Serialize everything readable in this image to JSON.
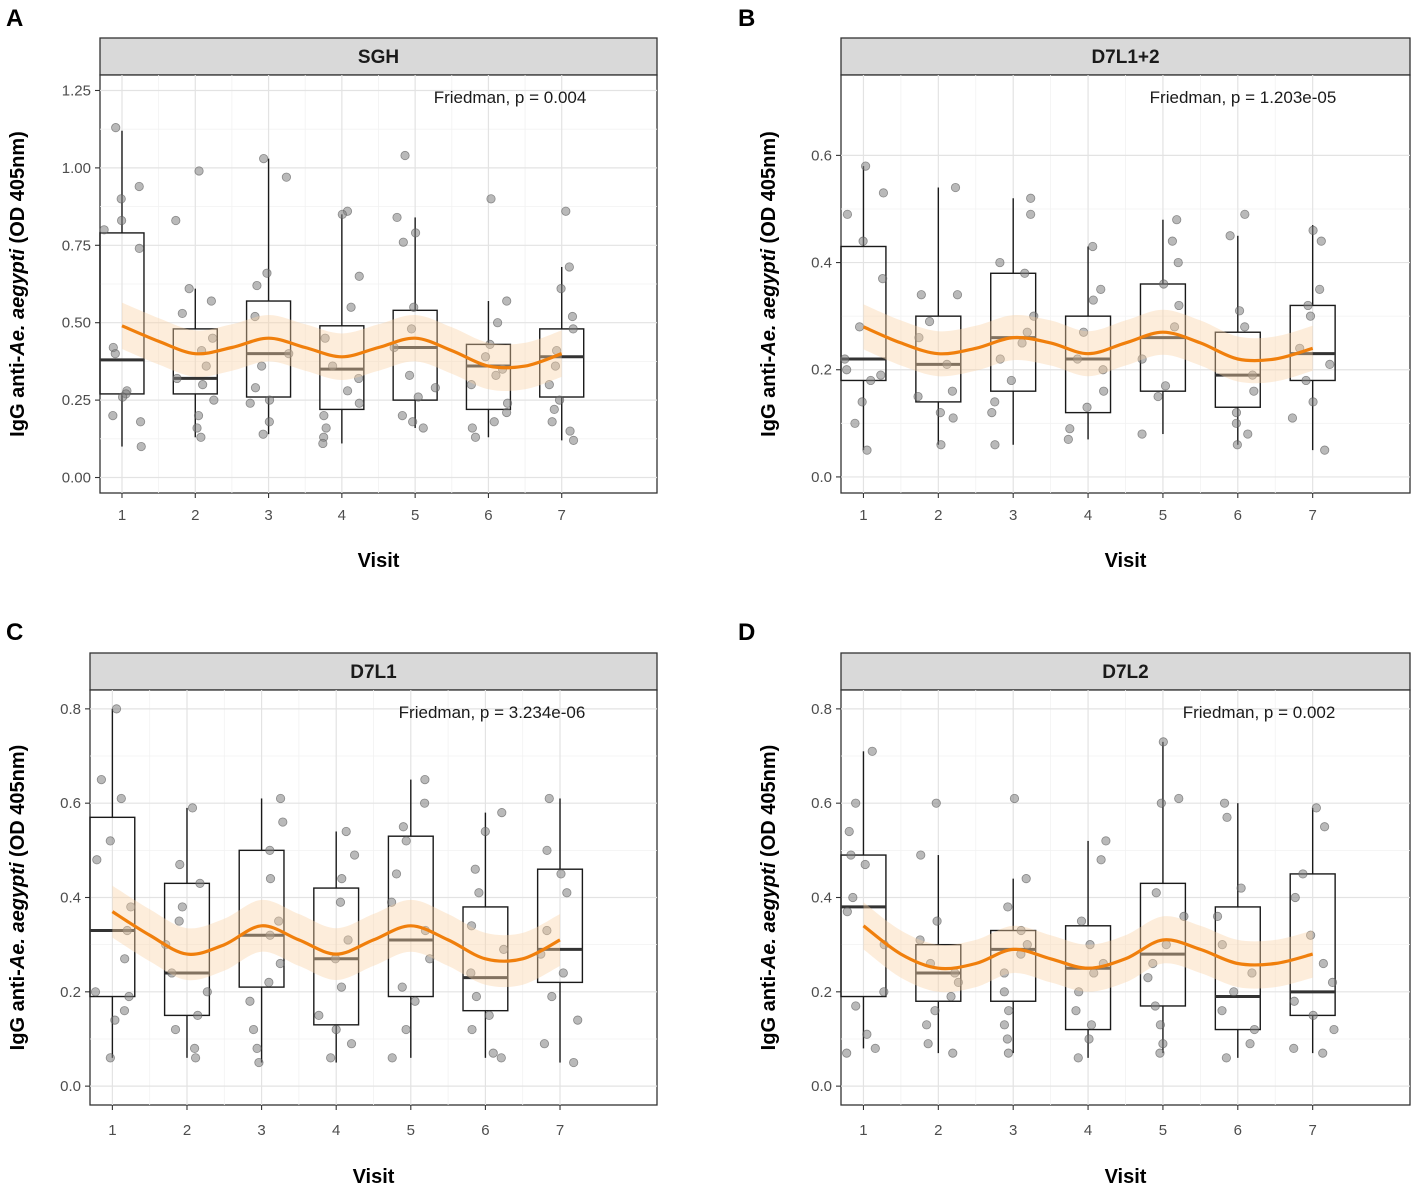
{
  "figure": {
    "xlabel": "Visit",
    "ylabel_prefix": "IgG anti-",
    "ylabel_italic": "Ae. aegypti",
    "ylabel_suffix": " (OD 405nm)"
  },
  "colors": {
    "trend": "#f07f0c",
    "ribbon": "#fbd3a5",
    "points": "#7f7f7f",
    "strip": "#d9d9d9"
  },
  "chart_data": [
    {
      "panel": "A",
      "type": "box",
      "title": "SGH",
      "annotation": "Friedman, p = 0.004",
      "xlabel": "Visit",
      "ylabel": "IgG anti-Ae. aegypti (OD 405nm)",
      "categories": [
        "1",
        "2",
        "3",
        "4",
        "5",
        "6",
        "7"
      ],
      "ylim": [
        -0.05,
        1.3
      ],
      "yticks": [
        0.0,
        0.25,
        0.5,
        0.75,
        1.0,
        1.25
      ],
      "yticklabels": [
        "0.00",
        "0.25",
        "0.50",
        "0.75",
        "1.00",
        "1.25"
      ],
      "boxes": [
        {
          "visit": 1,
          "low": 0.1,
          "q1": 0.27,
          "median": 0.38,
          "q3": 0.79,
          "high": 1.12
        },
        {
          "visit": 2,
          "low": 0.13,
          "q1": 0.27,
          "median": 0.32,
          "q3": 0.48,
          "high": 0.61
        },
        {
          "visit": 3,
          "low": 0.14,
          "q1": 0.26,
          "median": 0.4,
          "q3": 0.57,
          "high": 1.03
        },
        {
          "visit": 4,
          "low": 0.11,
          "q1": 0.22,
          "median": 0.35,
          "q3": 0.49,
          "high": 0.85
        },
        {
          "visit": 5,
          "low": 0.16,
          "q1": 0.25,
          "median": 0.42,
          "q3": 0.54,
          "high": 0.84
        },
        {
          "visit": 6,
          "low": 0.13,
          "q1": 0.22,
          "median": 0.36,
          "q3": 0.43,
          "high": 0.57
        },
        {
          "visit": 7,
          "low": 0.12,
          "q1": 0.26,
          "median": 0.39,
          "q3": 0.48,
          "high": 0.68
        }
      ],
      "points": [
        {
          "visit": 1,
          "values": [
            0.94,
            0.9,
            1.13,
            0.83,
            0.8,
            0.74,
            0.42,
            0.4,
            0.28,
            0.27,
            0.26,
            0.2,
            0.18,
            0.1
          ]
        },
        {
          "visit": 2,
          "values": [
            0.99,
            0.83,
            0.61,
            0.57,
            0.53,
            0.45,
            0.41,
            0.36,
            0.32,
            0.3,
            0.25,
            0.2,
            0.16,
            0.13
          ]
        },
        {
          "visit": 3,
          "values": [
            1.03,
            0.97,
            0.66,
            0.62,
            0.52,
            0.4,
            0.36,
            0.29,
            0.25,
            0.24,
            0.18,
            0.14
          ]
        },
        {
          "visit": 4,
          "values": [
            0.86,
            0.85,
            0.65,
            0.55,
            0.45,
            0.36,
            0.32,
            0.28,
            0.24,
            0.2,
            0.16,
            0.13,
            0.11
          ]
        },
        {
          "visit": 5,
          "values": [
            1.04,
            0.84,
            0.79,
            0.76,
            0.55,
            0.48,
            0.42,
            0.33,
            0.29,
            0.26,
            0.2,
            0.18,
            0.16
          ]
        },
        {
          "visit": 6,
          "values": [
            0.9,
            0.57,
            0.5,
            0.43,
            0.39,
            0.35,
            0.33,
            0.3,
            0.24,
            0.21,
            0.18,
            0.16,
            0.13
          ]
        },
        {
          "visit": 7,
          "values": [
            0.86,
            0.68,
            0.61,
            0.52,
            0.48,
            0.41,
            0.36,
            0.3,
            0.25,
            0.22,
            0.18,
            0.15,
            0.12
          ]
        }
      ],
      "trend": [
        {
          "x": 1.0,
          "y": 0.49
        },
        {
          "x": 1.5,
          "y": 0.44
        },
        {
          "x": 2.0,
          "y": 0.4
        },
        {
          "x": 2.5,
          "y": 0.42
        },
        {
          "x": 3.0,
          "y": 0.45
        },
        {
          "x": 3.5,
          "y": 0.42
        },
        {
          "x": 4.0,
          "y": 0.39
        },
        {
          "x": 4.5,
          "y": 0.42
        },
        {
          "x": 5.0,
          "y": 0.45
        },
        {
          "x": 5.5,
          "y": 0.41
        },
        {
          "x": 6.0,
          "y": 0.36
        },
        {
          "x": 6.5,
          "y": 0.36
        },
        {
          "x": 7.0,
          "y": 0.4
        }
      ],
      "ribbon_halfwidth": 0.075
    },
    {
      "panel": "B",
      "type": "box",
      "title": "D7L1+2",
      "annotation": "Friedman, p = 1.203e-05",
      "xlabel": "Visit",
      "ylabel": "IgG anti-Ae. aegypti (OD 405nm)",
      "categories": [
        "1",
        "2",
        "3",
        "4",
        "5",
        "6",
        "7"
      ],
      "ylim": [
        -0.03,
        0.75
      ],
      "yticks": [
        0.0,
        0.2,
        0.4,
        0.6
      ],
      "yticklabels": [
        "0.0",
        "0.2",
        "0.4",
        "0.6"
      ],
      "boxes": [
        {
          "visit": 1,
          "low": 0.05,
          "q1": 0.18,
          "median": 0.22,
          "q3": 0.43,
          "high": 0.58
        },
        {
          "visit": 2,
          "low": 0.06,
          "q1": 0.14,
          "median": 0.21,
          "q3": 0.3,
          "high": 0.54
        },
        {
          "visit": 3,
          "low": 0.06,
          "q1": 0.16,
          "median": 0.26,
          "q3": 0.38,
          "high": 0.52
        },
        {
          "visit": 4,
          "low": 0.07,
          "q1": 0.12,
          "median": 0.22,
          "q3": 0.3,
          "high": 0.43
        },
        {
          "visit": 5,
          "low": 0.08,
          "q1": 0.16,
          "median": 0.26,
          "q3": 0.36,
          "high": 0.48
        },
        {
          "visit": 6,
          "low": 0.06,
          "q1": 0.13,
          "median": 0.19,
          "q3": 0.27,
          "high": 0.45
        },
        {
          "visit": 7,
          "low": 0.05,
          "q1": 0.18,
          "median": 0.23,
          "q3": 0.32,
          "high": 0.47
        }
      ],
      "points": [
        {
          "visit": 1,
          "values": [
            0.58,
            0.53,
            0.49,
            0.44,
            0.37,
            0.28,
            0.22,
            0.2,
            0.19,
            0.18,
            0.14,
            0.1,
            0.05
          ]
        },
        {
          "visit": 2,
          "values": [
            0.54,
            0.34,
            0.34,
            0.29,
            0.26,
            0.21,
            0.16,
            0.15,
            0.12,
            0.11,
            0.06
          ]
        },
        {
          "visit": 3,
          "values": [
            0.52,
            0.49,
            0.4,
            0.38,
            0.3,
            0.27,
            0.25,
            0.22,
            0.18,
            0.14,
            0.12,
            0.06
          ]
        },
        {
          "visit": 4,
          "values": [
            0.43,
            0.35,
            0.33,
            0.27,
            0.22,
            0.2,
            0.16,
            0.13,
            0.09,
            0.07
          ]
        },
        {
          "visit": 5,
          "values": [
            0.48,
            0.44,
            0.4,
            0.36,
            0.32,
            0.28,
            0.22,
            0.17,
            0.15,
            0.08
          ]
        },
        {
          "visit": 6,
          "values": [
            0.49,
            0.45,
            0.31,
            0.28,
            0.19,
            0.16,
            0.12,
            0.1,
            0.08,
            0.06
          ]
        },
        {
          "visit": 7,
          "values": [
            0.46,
            0.44,
            0.35,
            0.32,
            0.3,
            0.24,
            0.21,
            0.18,
            0.14,
            0.11,
            0.05
          ]
        }
      ],
      "trend": [
        {
          "x": 1.0,
          "y": 0.28
        },
        {
          "x": 1.5,
          "y": 0.25
        },
        {
          "x": 2.0,
          "y": 0.23
        },
        {
          "x": 2.5,
          "y": 0.24
        },
        {
          "x": 3.0,
          "y": 0.26
        },
        {
          "x": 3.5,
          "y": 0.25
        },
        {
          "x": 4.0,
          "y": 0.23
        },
        {
          "x": 4.5,
          "y": 0.25
        },
        {
          "x": 5.0,
          "y": 0.27
        },
        {
          "x": 5.5,
          "y": 0.25
        },
        {
          "x": 6.0,
          "y": 0.22
        },
        {
          "x": 6.5,
          "y": 0.22
        },
        {
          "x": 7.0,
          "y": 0.24
        }
      ],
      "ribbon_halfwidth": 0.042
    },
    {
      "panel": "C",
      "type": "box",
      "title": "D7L1",
      "annotation": "Friedman, p = 3.234e-06",
      "xlabel": "Visit",
      "ylabel": "IgG anti-Ae. aegypti (OD 405nm)",
      "categories": [
        "1",
        "2",
        "3",
        "4",
        "5",
        "6",
        "7"
      ],
      "ylim": [
        -0.04,
        0.84
      ],
      "yticks": [
        0.0,
        0.2,
        0.4,
        0.6,
        0.8
      ],
      "yticklabels": [
        "0.0",
        "0.2",
        "0.4",
        "0.6",
        "0.8"
      ],
      "boxes": [
        {
          "visit": 1,
          "low": 0.06,
          "q1": 0.19,
          "median": 0.33,
          "q3": 0.57,
          "high": 0.8
        },
        {
          "visit": 2,
          "low": 0.06,
          "q1": 0.15,
          "median": 0.24,
          "q3": 0.43,
          "high": 0.59
        },
        {
          "visit": 3,
          "low": 0.05,
          "q1": 0.21,
          "median": 0.32,
          "q3": 0.5,
          "high": 0.61
        },
        {
          "visit": 4,
          "low": 0.05,
          "q1": 0.13,
          "median": 0.27,
          "q3": 0.42,
          "high": 0.54
        },
        {
          "visit": 5,
          "low": 0.06,
          "q1": 0.19,
          "median": 0.31,
          "q3": 0.53,
          "high": 0.65
        },
        {
          "visit": 6,
          "low": 0.06,
          "q1": 0.16,
          "median": 0.23,
          "q3": 0.38,
          "high": 0.58
        },
        {
          "visit": 7,
          "low": 0.05,
          "q1": 0.22,
          "median": 0.29,
          "q3": 0.46,
          "high": 0.61
        }
      ],
      "points": [
        {
          "visit": 1,
          "values": [
            0.8,
            0.65,
            0.61,
            0.52,
            0.48,
            0.38,
            0.33,
            0.27,
            0.2,
            0.19,
            0.16,
            0.14,
            0.06
          ]
        },
        {
          "visit": 2,
          "values": [
            0.59,
            0.47,
            0.43,
            0.38,
            0.35,
            0.3,
            0.24,
            0.2,
            0.15,
            0.12,
            0.08,
            0.06
          ]
        },
        {
          "visit": 3,
          "values": [
            0.61,
            0.56,
            0.5,
            0.44,
            0.35,
            0.32,
            0.26,
            0.22,
            0.18,
            0.12,
            0.08,
            0.05
          ]
        },
        {
          "visit": 4,
          "values": [
            0.54,
            0.49,
            0.44,
            0.39,
            0.31,
            0.27,
            0.21,
            0.15,
            0.12,
            0.09,
            0.06
          ]
        },
        {
          "visit": 5,
          "values": [
            0.65,
            0.6,
            0.55,
            0.52,
            0.45,
            0.39,
            0.33,
            0.27,
            0.21,
            0.18,
            0.12,
            0.06
          ]
        },
        {
          "visit": 6,
          "values": [
            0.58,
            0.54,
            0.46,
            0.41,
            0.34,
            0.29,
            0.24,
            0.19,
            0.15,
            0.12,
            0.07,
            0.06
          ]
        },
        {
          "visit": 7,
          "values": [
            0.61,
            0.5,
            0.45,
            0.41,
            0.33,
            0.28,
            0.24,
            0.19,
            0.14,
            0.09,
            0.05
          ]
        }
      ],
      "trend": [
        {
          "x": 1.0,
          "y": 0.37
        },
        {
          "x": 1.5,
          "y": 0.32
        },
        {
          "x": 2.0,
          "y": 0.28
        },
        {
          "x": 2.5,
          "y": 0.3
        },
        {
          "x": 3.0,
          "y": 0.34
        },
        {
          "x": 3.5,
          "y": 0.31
        },
        {
          "x": 4.0,
          "y": 0.28
        },
        {
          "x": 4.5,
          "y": 0.31
        },
        {
          "x": 5.0,
          "y": 0.34
        },
        {
          "x": 5.5,
          "y": 0.31
        },
        {
          "x": 6.0,
          "y": 0.27
        },
        {
          "x": 6.5,
          "y": 0.27
        },
        {
          "x": 7.0,
          "y": 0.31
        }
      ],
      "ribbon_halfwidth": 0.055
    },
    {
      "panel": "D",
      "type": "box",
      "title": "D7L2",
      "annotation": "Friedman, p = 0.002",
      "xlabel": "Visit",
      "ylabel": "IgG anti-Ae. aegypti (OD 405nm)",
      "categories": [
        "1",
        "2",
        "3",
        "4",
        "5",
        "6",
        "7"
      ],
      "ylim": [
        -0.04,
        0.84
      ],
      "yticks": [
        0.0,
        0.2,
        0.4,
        0.6,
        0.8
      ],
      "yticklabels": [
        "0.0",
        "0.2",
        "0.4",
        "0.6",
        "0.8"
      ],
      "boxes": [
        {
          "visit": 1,
          "low": 0.08,
          "q1": 0.19,
          "median": 0.38,
          "q3": 0.49,
          "high": 0.71
        },
        {
          "visit": 2,
          "low": 0.07,
          "q1": 0.18,
          "median": 0.24,
          "q3": 0.3,
          "high": 0.49
        },
        {
          "visit": 3,
          "low": 0.07,
          "q1": 0.18,
          "median": 0.29,
          "q3": 0.33,
          "high": 0.44
        },
        {
          "visit": 4,
          "low": 0.06,
          "q1": 0.12,
          "median": 0.25,
          "q3": 0.34,
          "high": 0.52
        },
        {
          "visit": 5,
          "low": 0.07,
          "q1": 0.17,
          "median": 0.28,
          "q3": 0.43,
          "high": 0.73
        },
        {
          "visit": 6,
          "low": 0.06,
          "q1": 0.12,
          "median": 0.19,
          "q3": 0.38,
          "high": 0.6
        },
        {
          "visit": 7,
          "low": 0.07,
          "q1": 0.15,
          "median": 0.2,
          "q3": 0.45,
          "high": 0.59
        }
      ],
      "points": [
        {
          "visit": 1,
          "values": [
            0.71,
            0.6,
            0.54,
            0.49,
            0.47,
            0.4,
            0.37,
            0.3,
            0.2,
            0.17,
            0.11,
            0.08,
            0.07
          ]
        },
        {
          "visit": 2,
          "values": [
            0.6,
            0.49,
            0.35,
            0.31,
            0.26,
            0.24,
            0.22,
            0.19,
            0.16,
            0.13,
            0.09,
            0.07
          ]
        },
        {
          "visit": 3,
          "values": [
            0.61,
            0.44,
            0.38,
            0.33,
            0.3,
            0.28,
            0.24,
            0.2,
            0.16,
            0.13,
            0.1,
            0.07
          ]
        },
        {
          "visit": 4,
          "values": [
            0.52,
            0.48,
            0.35,
            0.3,
            0.26,
            0.24,
            0.2,
            0.16,
            0.13,
            0.1,
            0.06
          ]
        },
        {
          "visit": 5,
          "values": [
            0.73,
            0.61,
            0.6,
            0.41,
            0.36,
            0.3,
            0.26,
            0.23,
            0.17,
            0.13,
            0.09,
            0.07
          ]
        },
        {
          "visit": 6,
          "values": [
            0.6,
            0.57,
            0.42,
            0.36,
            0.3,
            0.24,
            0.2,
            0.16,
            0.12,
            0.09,
            0.06
          ]
        },
        {
          "visit": 7,
          "values": [
            0.59,
            0.55,
            0.45,
            0.4,
            0.32,
            0.26,
            0.22,
            0.18,
            0.15,
            0.12,
            0.08,
            0.07
          ]
        }
      ],
      "trend": [
        {
          "x": 1.0,
          "y": 0.34
        },
        {
          "x": 1.5,
          "y": 0.28
        },
        {
          "x": 2.0,
          "y": 0.25
        },
        {
          "x": 2.5,
          "y": 0.26
        },
        {
          "x": 3.0,
          "y": 0.29
        },
        {
          "x": 3.5,
          "y": 0.27
        },
        {
          "x": 4.0,
          "y": 0.25
        },
        {
          "x": 4.5,
          "y": 0.27
        },
        {
          "x": 5.0,
          "y": 0.31
        },
        {
          "x": 5.5,
          "y": 0.29
        },
        {
          "x": 6.0,
          "y": 0.26
        },
        {
          "x": 6.5,
          "y": 0.26
        },
        {
          "x": 7.0,
          "y": 0.28
        }
      ],
      "ribbon_halfwidth": 0.05
    }
  ]
}
